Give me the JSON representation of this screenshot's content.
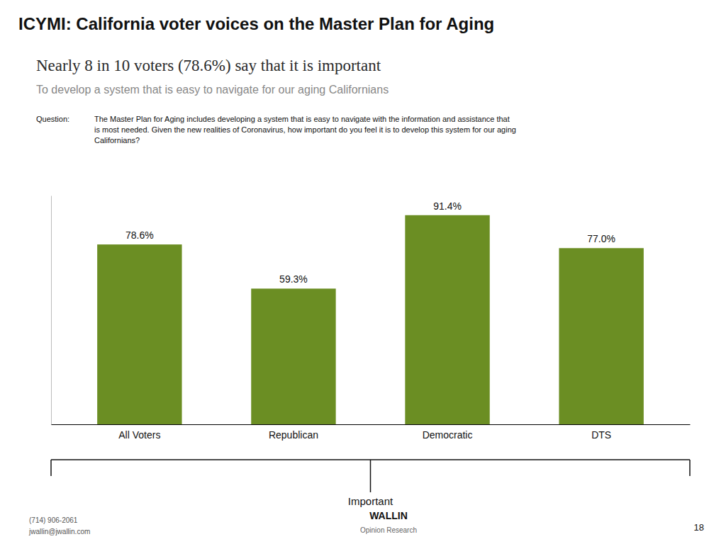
{
  "chart_data": {
    "type": "bar",
    "title": "ICYMI: California voter voices on the Master Plan for Aging",
    "subtitle": "Nearly 8 in 10 voters (78.6%) say that it is important",
    "annotations": [
      "To develop a system that is easy to navigate for our aging Californians",
      "Question:",
      "The Master Plan for Aging includes developing a system that is easy to navigate with the information and assistance that",
      "is most needed. Given the new realities of Coronavirus, how important do you feel it is to develop this system for our aging",
      "Californians?",
      "(714) 906-2061",
      "jwallin@jwallin.com",
      "18",
      "WALLIN",
      "Opinion Research"
    ],
    "xlabel": "Important",
    "categories": [
      "All Voters",
      "Republican",
      "Democratic",
      "DTS"
    ],
    "values": [
      78.6,
      59.3,
      91.4,
      77.0
    ],
    "value_labels": [
      "78.6%",
      "59.3%",
      "91.4%",
      "77.0%"
    ],
    "data_labels": true,
    "color": "#6b8e23",
    "ylim": [
      0,
      100
    ],
    "tick_labels": "x",
    "grid": false
  }
}
